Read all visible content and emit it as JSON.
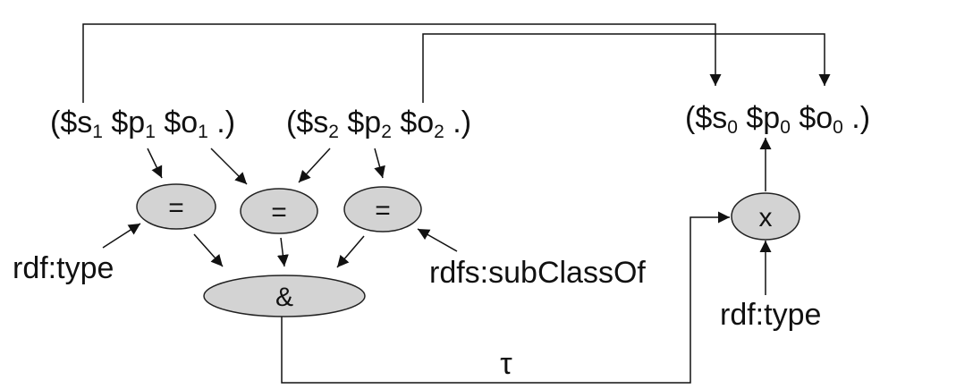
{
  "colors": {
    "node_fill": "#d3d3d3",
    "stroke": "#111111",
    "background": "#ffffff"
  },
  "pattern1": {
    "open": "($s",
    "s_sub": "1",
    "p": " $p",
    "p_sub": "1",
    "o": " $o",
    "o_sub": "1",
    "close": " .)"
  },
  "pattern2": {
    "open": "($s",
    "s_sub": "2",
    "p": " $p",
    "p_sub": "2",
    "o": " $o",
    "o_sub": "2",
    "close": " .)"
  },
  "conclusion": {
    "open": "($s",
    "s_sub": "0",
    "p": " $p",
    "p_sub": "0",
    "o": " $o",
    "o_sub": "0",
    "close": " .)"
  },
  "nodes": {
    "eq1": "=",
    "eq2": "=",
    "eq3": "=",
    "and": "&",
    "x": "x"
  },
  "constants": {
    "type_left": "rdf:type",
    "subclassof": "rdfs:subClassOf",
    "type_right": "rdf:type"
  },
  "edge_label": "τ"
}
